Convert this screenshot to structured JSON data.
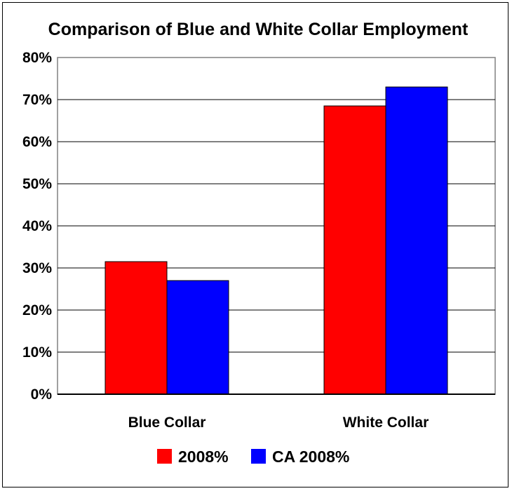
{
  "chart_data": {
    "type": "bar",
    "title": "Comparison of Blue and White Collar Employment",
    "categories": [
      "Blue Collar",
      "White Collar"
    ],
    "series": [
      {
        "name": "2008%",
        "values": [
          31.5,
          68.5
        ],
        "color": "#ff0000"
      },
      {
        "name": "CA 2008%",
        "values": [
          27.0,
          73.0
        ],
        "color": "#0000ff"
      }
    ],
    "ylim": [
      0,
      80
    ],
    "yticks": [
      "0%",
      "10%",
      "20%",
      "30%",
      "40%",
      "50%",
      "60%",
      "70%",
      "80%"
    ],
    "grid": true,
    "legend": "bottom",
    "xlabel": "",
    "ylabel": ""
  }
}
